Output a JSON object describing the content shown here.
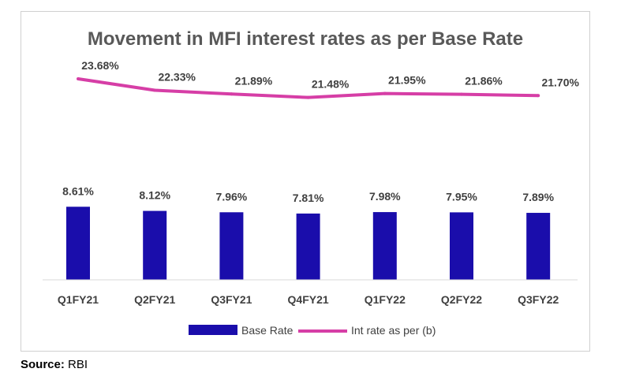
{
  "chart_data": {
    "type": "bar",
    "title": "Movement in MFI interest rates as per Base Rate",
    "categories": [
      "Q1FY21",
      "Q2FY21",
      "Q3FY21",
      "Q4FY21",
      "Q1FY22",
      "Q2FY22",
      "Q3FY22"
    ],
    "series": [
      {
        "name": "Base Rate",
        "type": "bar",
        "values": [
          8.61,
          8.12,
          7.96,
          7.81,
          7.98,
          7.95,
          7.89
        ],
        "labels": [
          "8.61%",
          "8.12%",
          "7.96%",
          "7.81%",
          "7.98%",
          "7.95%",
          "7.89%"
        ],
        "color": "#1a0dab"
      },
      {
        "name": "Int rate as per (b)",
        "type": "line",
        "values": [
          23.68,
          22.33,
          21.89,
          21.48,
          21.95,
          21.86,
          21.7
        ],
        "labels": [
          "23.68%",
          "22.33%",
          "21.89%",
          "21.48%",
          "21.95%",
          "21.86%",
          "21.70%"
        ],
        "color": "#d63ea6"
      }
    ],
    "ylim": [
      0,
      26
    ],
    "y_axis_visible": false,
    "grid": false,
    "legend_position": "bottom"
  },
  "source": {
    "label": "Source:",
    "text": "RBI"
  }
}
